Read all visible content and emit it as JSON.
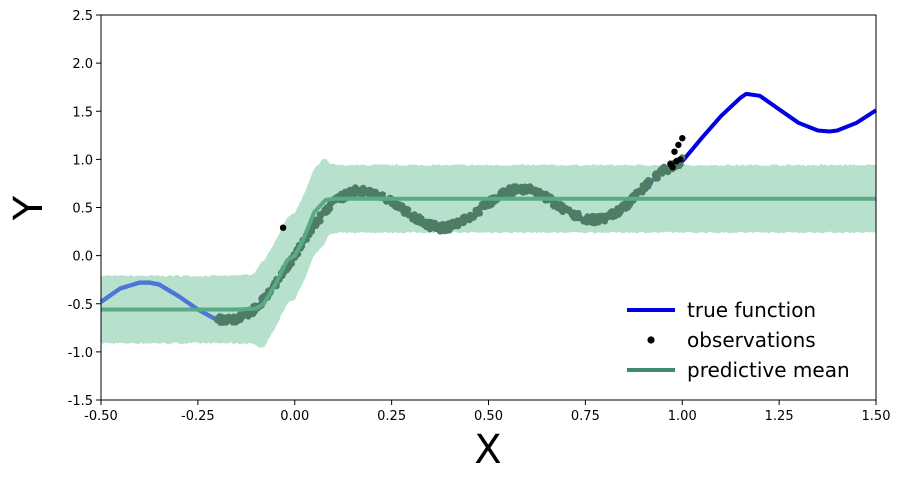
{
  "chart_data": {
    "type": "line",
    "xlabel": "X",
    "ylabel": "Y",
    "xlim": [
      -0.5,
      1.5
    ],
    "ylim": [
      -1.5,
      2.5
    ],
    "x_ticks": [
      "-0.50",
      "-0.25",
      "0.00",
      "0.25",
      "0.50",
      "0.75",
      "1.00",
      "1.25",
      "1.50"
    ],
    "y_ticks": [
      "-1.5",
      "-1.0",
      "-0.5",
      "0.0",
      "0.5",
      "1.0",
      "1.5",
      "2.0",
      "2.5"
    ],
    "grid": false,
    "legend_position": "lower-right",
    "true_function": {
      "name": "true function",
      "color": "#0000e0",
      "x": [
        -0.5,
        -0.45,
        -0.4,
        -0.375,
        -0.35,
        -0.3,
        -0.25,
        -0.2,
        -0.15,
        -0.1,
        -0.05,
        0.0,
        0.05,
        0.1,
        0.15,
        0.2,
        0.25,
        0.3,
        0.35,
        0.375,
        0.4,
        0.45,
        0.5,
        0.55,
        0.6,
        0.65,
        0.7,
        0.75,
        0.8,
        0.85,
        0.9,
        0.95,
        1.0,
        1.05,
        1.1,
        1.15,
        1.165,
        1.2,
        1.25,
        1.3,
        1.35,
        1.38,
        1.4,
        1.45,
        1.5
      ],
      "y": [
        -0.48,
        -0.34,
        -0.28,
        -0.28,
        -0.3,
        -0.42,
        -0.56,
        -0.67,
        -0.66,
        -0.55,
        -0.3,
        0.0,
        0.32,
        0.56,
        0.67,
        0.66,
        0.56,
        0.42,
        0.31,
        0.29,
        0.3,
        0.39,
        0.55,
        0.67,
        0.7,
        0.6,
        0.47,
        0.37,
        0.38,
        0.5,
        0.7,
        0.88,
        0.98,
        1.22,
        1.45,
        1.64,
        1.68,
        1.66,
        1.52,
        1.38,
        1.3,
        1.29,
        1.3,
        1.38,
        1.51
      ]
    },
    "observations": {
      "name": "observations",
      "color": "#000000",
      "x_range": [
        -0.2,
        1.0
      ],
      "note_points": [
        [
          -0.03,
          0.29
        ],
        [
          0.97,
          0.95
        ],
        [
          0.98,
          1.08
        ],
        [
          0.99,
          1.15
        ],
        [
          1.0,
          1.22
        ],
        [
          0.995,
          1.0
        ],
        [
          0.985,
          0.98
        ],
        [
          0.975,
          0.92
        ]
      ]
    },
    "predictive_mean": {
      "name": "predictive mean",
      "color": "#428a6b",
      "x": [
        -0.5,
        -0.15,
        -0.1,
        -0.08,
        -0.05,
        -0.02,
        0.0,
        0.02,
        0.05,
        0.08,
        0.1,
        1.5
      ],
      "y": [
        -0.56,
        -0.56,
        -0.55,
        -0.5,
        -0.3,
        -0.05,
        0.0,
        0.15,
        0.45,
        0.58,
        0.59,
        0.59
      ]
    },
    "uncertainty_band": {
      "color": "#b7e1cc",
      "half_width": 0.35
    },
    "legend": [
      "true function",
      "observations",
      "predictive mean"
    ]
  }
}
